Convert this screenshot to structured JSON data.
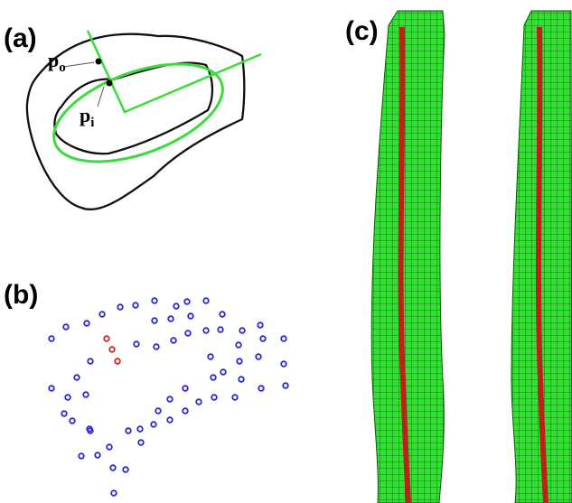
{
  "panel_a": {
    "label": "(a)",
    "outer_point": {
      "base": "p",
      "sub": "o"
    },
    "inner_point": {
      "base": "p",
      "sub": "i"
    }
  },
  "panel_b": {
    "label": "(b)"
  },
  "panel_c": {
    "label": "(c)"
  }
}
